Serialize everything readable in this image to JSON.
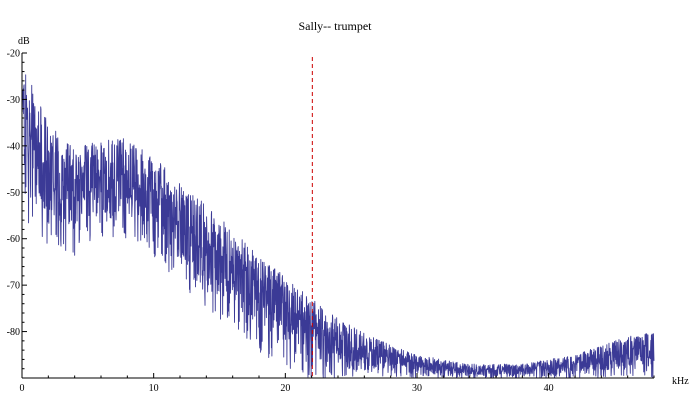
{
  "chart_data": {
    "type": "line",
    "title": "Sally-- trumpet",
    "xlabel": "kHz",
    "ylabel": "dB",
    "xlim": [
      0,
      48
    ],
    "ylim": [
      -90,
      -20
    ],
    "x_ticks": [
      0,
      10,
      20,
      30,
      40
    ],
    "y_ticks": [
      -20,
      -30,
      -40,
      -50,
      -60,
      -70,
      -80
    ],
    "grid": false,
    "legend": "none",
    "series": [
      {
        "color": "#3b3a96",
        "envelope": {
          "x": [
            0,
            2,
            4,
            6,
            8,
            10,
            12,
            14,
            16,
            18,
            20,
            22,
            24,
            26,
            28,
            30,
            32,
            34,
            36,
            38,
            40,
            42,
            44,
            46,
            48
          ],
          "upper": [
            -22,
            -35,
            -40,
            -38,
            -38,
            -42,
            -48,
            -52,
            -58,
            -64,
            -68,
            -73,
            -77,
            -80,
            -83,
            -85,
            -86,
            -87,
            -87,
            -87,
            -86,
            -85,
            -83,
            -81,
            -80
          ],
          "lower": [
            -55,
            -62,
            -64,
            -60,
            -60,
            -64,
            -70,
            -75,
            -80,
            -85,
            -89,
            -90,
            -90,
            -90,
            -90,
            -90,
            -90,
            -90,
            -90,
            -90,
            -90,
            -90,
            -90,
            -90,
            -90
          ]
        }
      }
    ],
    "marker_line": {
      "x": 22.05,
      "color": "#cc0000",
      "style": "dashed"
    }
  }
}
